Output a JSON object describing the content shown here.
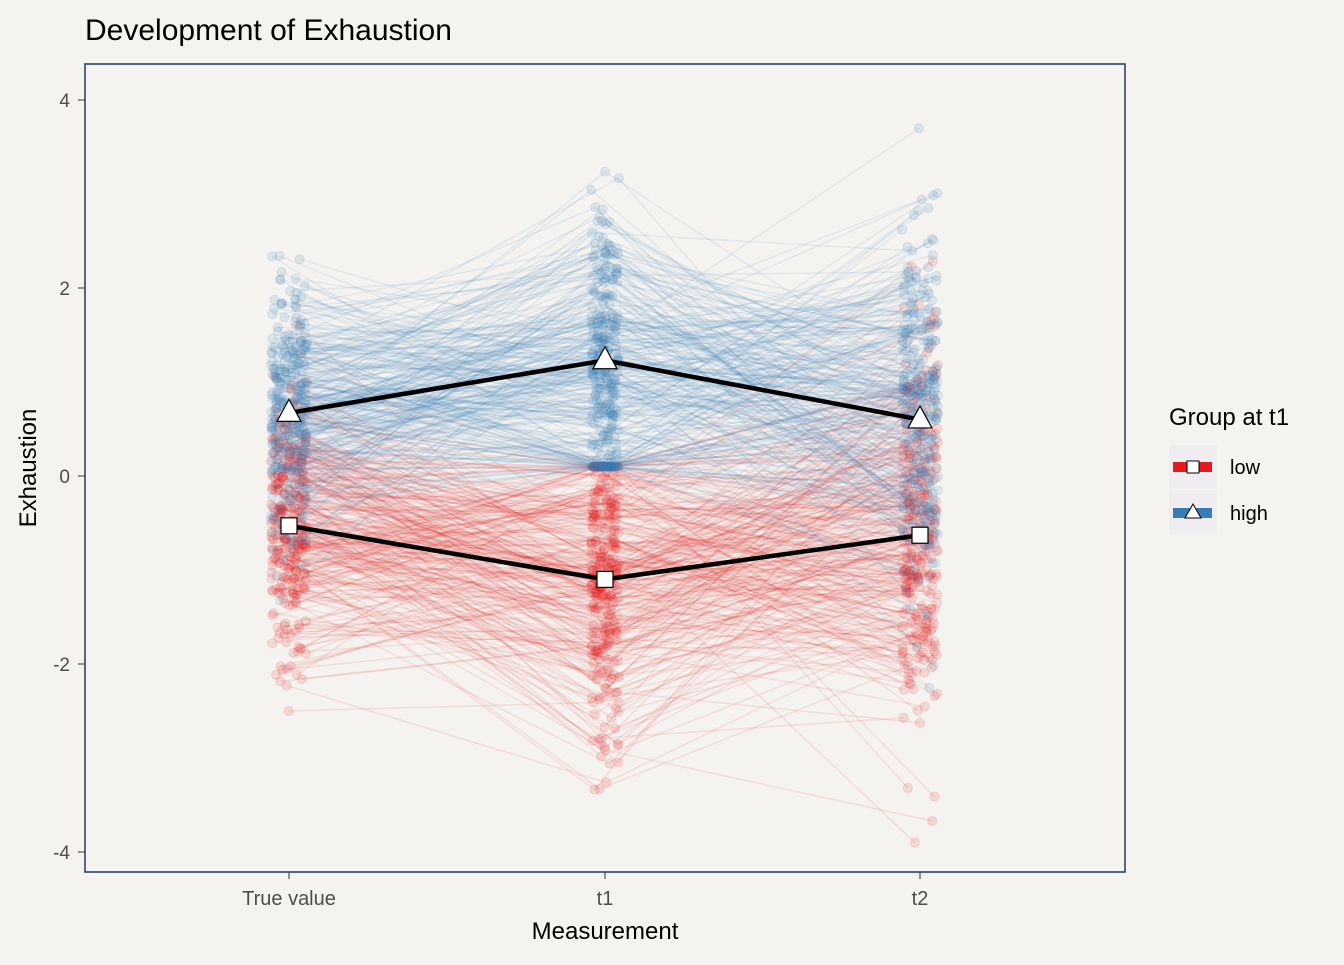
{
  "chart_data": {
    "type": "line",
    "title": "Development of Exhaustion",
    "xlabel": "Measurement",
    "ylabel": "Exhaustion",
    "categories": [
      "True value",
      "t1",
      "t2"
    ],
    "yticks": [
      -4,
      -2,
      0,
      2,
      4
    ],
    "ylim": [
      -4.3,
      4.4
    ],
    "grid": false,
    "legend": {
      "title": "Group at t1",
      "placement": "right",
      "entries": [
        {
          "label": "low",
          "color": "#e41a1c",
          "marker": "square"
        },
        {
          "label": "high",
          "color": "#377eb8",
          "marker": "triangle"
        }
      ]
    },
    "series": [
      {
        "name": "low",
        "color": "#e41a1c",
        "marker": "square",
        "mean_values": [
          -0.53,
          -1.1,
          -0.63
        ]
      },
      {
        "name": "high",
        "color": "#377eb8",
        "marker": "triangle",
        "mean_values": [
          0.67,
          1.23,
          0.6
        ]
      }
    ],
    "individual_trajectories": {
      "count_per_group": 300,
      "alpha": 0.1,
      "low": {
        "range_true": [
          -2.5,
          1.6
        ],
        "range_t1": [
          -3.7,
          0.1
        ],
        "range_t2": [
          -3.9,
          3.1
        ]
      },
      "high": {
        "range_true": [
          -1.4,
          2.8
        ],
        "range_t1": [
          0.1,
          4.0
        ],
        "range_t2": [
          -3.0,
          3.7
        ]
      }
    },
    "colors": {
      "panel_border": "#1f3766",
      "background": "#f5f3f0",
      "mean_line": "#000000"
    }
  }
}
